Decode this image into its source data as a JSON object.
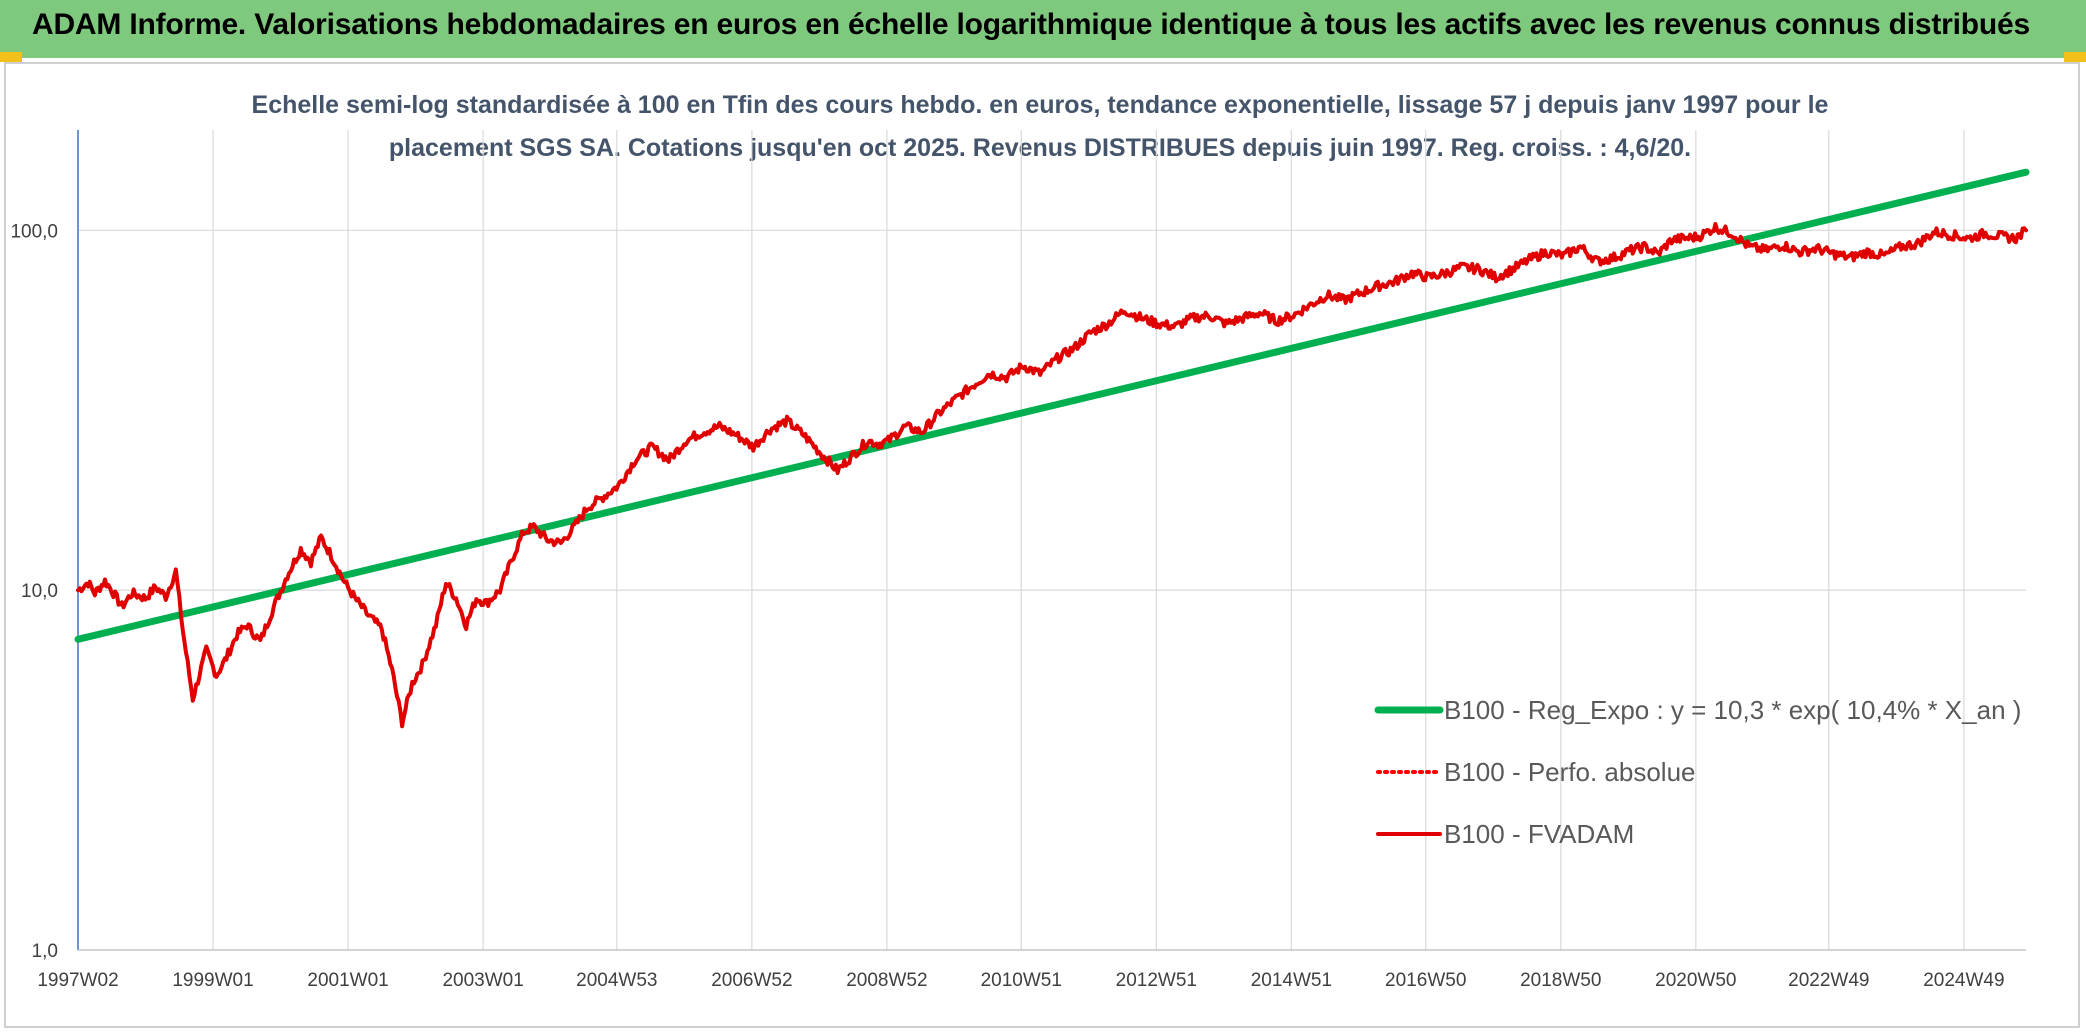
{
  "header": {
    "title": "ADAM Informe. Valorisations hebdomadaires en euros en échelle logarithmique identique à tous les actifs avec les revenus connus distribués"
  },
  "chart_data": {
    "type": "line",
    "subtitle_line1": "Echelle semi-log standardisée à 100 en Tfin des cours hebdo. en euros, tendance exponentielle, lissage 57 j depuis janv 1997 pour le",
    "subtitle_line2": "placement SGS SA. Cotations jusqu'en oct 2025. Revenus DISTRIBUES depuis juin 1997. Reg. croiss. : 4,6/20.",
    "y_scale": "log",
    "ylim": [
      1,
      190
    ],
    "xlim": [
      1997.0,
      2025.85
    ],
    "y_ticks": [
      1,
      10,
      100
    ],
    "y_tick_labels": [
      "1,0",
      "10,0",
      "100,0"
    ],
    "x_ticks": [
      1997.0,
      1999.0,
      2001.0,
      2003.0,
      2004.98,
      2006.98,
      2008.98,
      2010.97,
      2012.97,
      2014.97,
      2016.96,
      2018.96,
      2020.96,
      2022.93,
      2024.93
    ],
    "x_tick_labels": [
      "1997W02",
      "1999W01",
      "2001W01",
      "2003W01",
      "2004W53",
      "2006W52",
      "2008W52",
      "2010W51",
      "2012W51",
      "2014W51",
      "2016W50",
      "2018W50",
      "2020W50",
      "2022W49",
      "2024W49"
    ],
    "grid": "vertical-and-horizontal",
    "legend_position": "bottom-right",
    "colors": {
      "trend": "#00b050",
      "perf": "#ff0000",
      "fvadam": "#e00000",
      "grid": "#d9d9d9",
      "axis": "#4472c4"
    },
    "series": [
      {
        "name": "B100 - Reg_Expo : y = 10,3 * exp( 10,4% *  X_an )",
        "style": "solid-green",
        "x": [
          1997.0,
          2025.85
        ],
        "y": [
          7.3,
          145
        ]
      },
      {
        "name": "B100 - Perfo. absolue",
        "style": "dotted-red",
        "x": [],
        "y": []
      },
      {
        "name": "B100 - FVADAM",
        "style": "solid-red",
        "x": [
          1997.0,
          1997.15,
          1997.25,
          1997.4,
          1997.5,
          1997.65,
          1997.8,
          1998.0,
          1998.15,
          1998.3,
          1998.45,
          1998.55,
          1998.7,
          1998.9,
          1999.05,
          1999.2,
          1999.35,
          1999.5,
          1999.7,
          1999.9,
          2000.1,
          2000.3,
          2000.45,
          2000.6,
          2000.75,
          2000.95,
          2001.1,
          2001.3,
          2001.5,
          2001.65,
          2001.8,
          2001.95,
          2002.1,
          2002.3,
          2002.45,
          2002.6,
          2002.75,
          2002.9,
          2003.05,
          2003.25,
          2003.45,
          2003.6,
          2003.75,
          2003.95,
          2004.15,
          2004.35,
          2004.55,
          2004.75,
          2005.0,
          2005.25,
          2005.5,
          2005.75,
          2006.0,
          2006.25,
          2006.5,
          2006.75,
          2007.0,
          2007.25,
          2007.5,
          2007.75,
          2008.0,
          2008.25,
          2008.5,
          2008.7,
          2008.85,
          2009.0,
          2009.25,
          2009.5,
          2009.75,
          2010.0,
          2010.25,
          2010.5,
          2010.75,
          2011.0,
          2011.25,
          2011.5,
          2011.75,
          2012.0,
          2012.25,
          2012.5,
          2012.75,
          2013.0,
          2013.25,
          2013.5,
          2013.75,
          2014.0,
          2014.25,
          2014.5,
          2014.75,
          2015.0,
          2015.25,
          2015.5,
          2015.75,
          2016.0,
          2016.25,
          2016.5,
          2016.75,
          2017.0,
          2017.25,
          2017.5,
          2017.75,
          2018.0,
          2018.25,
          2018.5,
          2018.75,
          2019.0,
          2019.25,
          2019.5,
          2019.75,
          2020.0,
          2020.2,
          2020.4,
          2020.6,
          2020.8,
          2021.0,
          2021.25,
          2021.5,
          2021.75,
          2022.0,
          2022.25,
          2022.5,
          2022.75,
          2023.0,
          2023.25,
          2023.5,
          2023.75,
          2024.0,
          2024.25,
          2024.5,
          2024.75,
          2025.0,
          2025.25,
          2025.5,
          2025.7,
          2025.85
        ],
        "y": [
          10.0,
          10.5,
          9.8,
          10.6,
          10.0,
          9.0,
          9.8,
          9.5,
          10.2,
          9.6,
          11.3,
          7.8,
          5.0,
          6.8,
          5.8,
          6.5,
          7.5,
          8.0,
          7.2,
          9.0,
          11.0,
          13.0,
          12.0,
          14.0,
          12.5,
          10.5,
          9.5,
          8.5,
          7.8,
          6.0,
          4.3,
          5.5,
          6.2,
          8.0,
          10.5,
          9.5,
          8.0,
          9.5,
          9.2,
          10.0,
          12.5,
          14.5,
          15.0,
          13.8,
          13.5,
          15.0,
          17.0,
          18.0,
          19.5,
          23.0,
          25.0,
          23.0,
          26.0,
          27.5,
          28.5,
          27.0,
          25.0,
          28.0,
          29.5,
          27.0,
          24.0,
          21.5,
          24.0,
          26.0,
          25.5,
          26.0,
          28.5,
          27.5,
          31.0,
          34.0,
          37.0,
          40.0,
          39.0,
          42.0,
          40.0,
          44.0,
          47.0,
          52.0,
          55.0,
          60.0,
          57.0,
          55.0,
          54.0,
          57.0,
          58.0,
          55.0,
          57.0,
          59.0,
          56.0,
          58.0,
          62.0,
          66.0,
          64.0,
          67.0,
          70.0,
          72.0,
          76.0,
          74.0,
          76.0,
          79.0,
          78.0,
          74.0,
          78.0,
          83.0,
          87.0,
          85.0,
          90.0,
          82.0,
          84.0,
          88.0,
          90.0,
          86.0,
          94.0,
          95.0,
          96.0,
          102.0,
          98.0,
          90.0,
          88.0,
          91.0,
          87.0,
          89.0,
          86.0,
          84.0,
          87.0,
          85.0,
          90.0,
          92.0,
          99.0,
          97.0,
          95.0,
          98.0,
          96.0,
          95.0,
          100.0
        ]
      }
    ]
  }
}
